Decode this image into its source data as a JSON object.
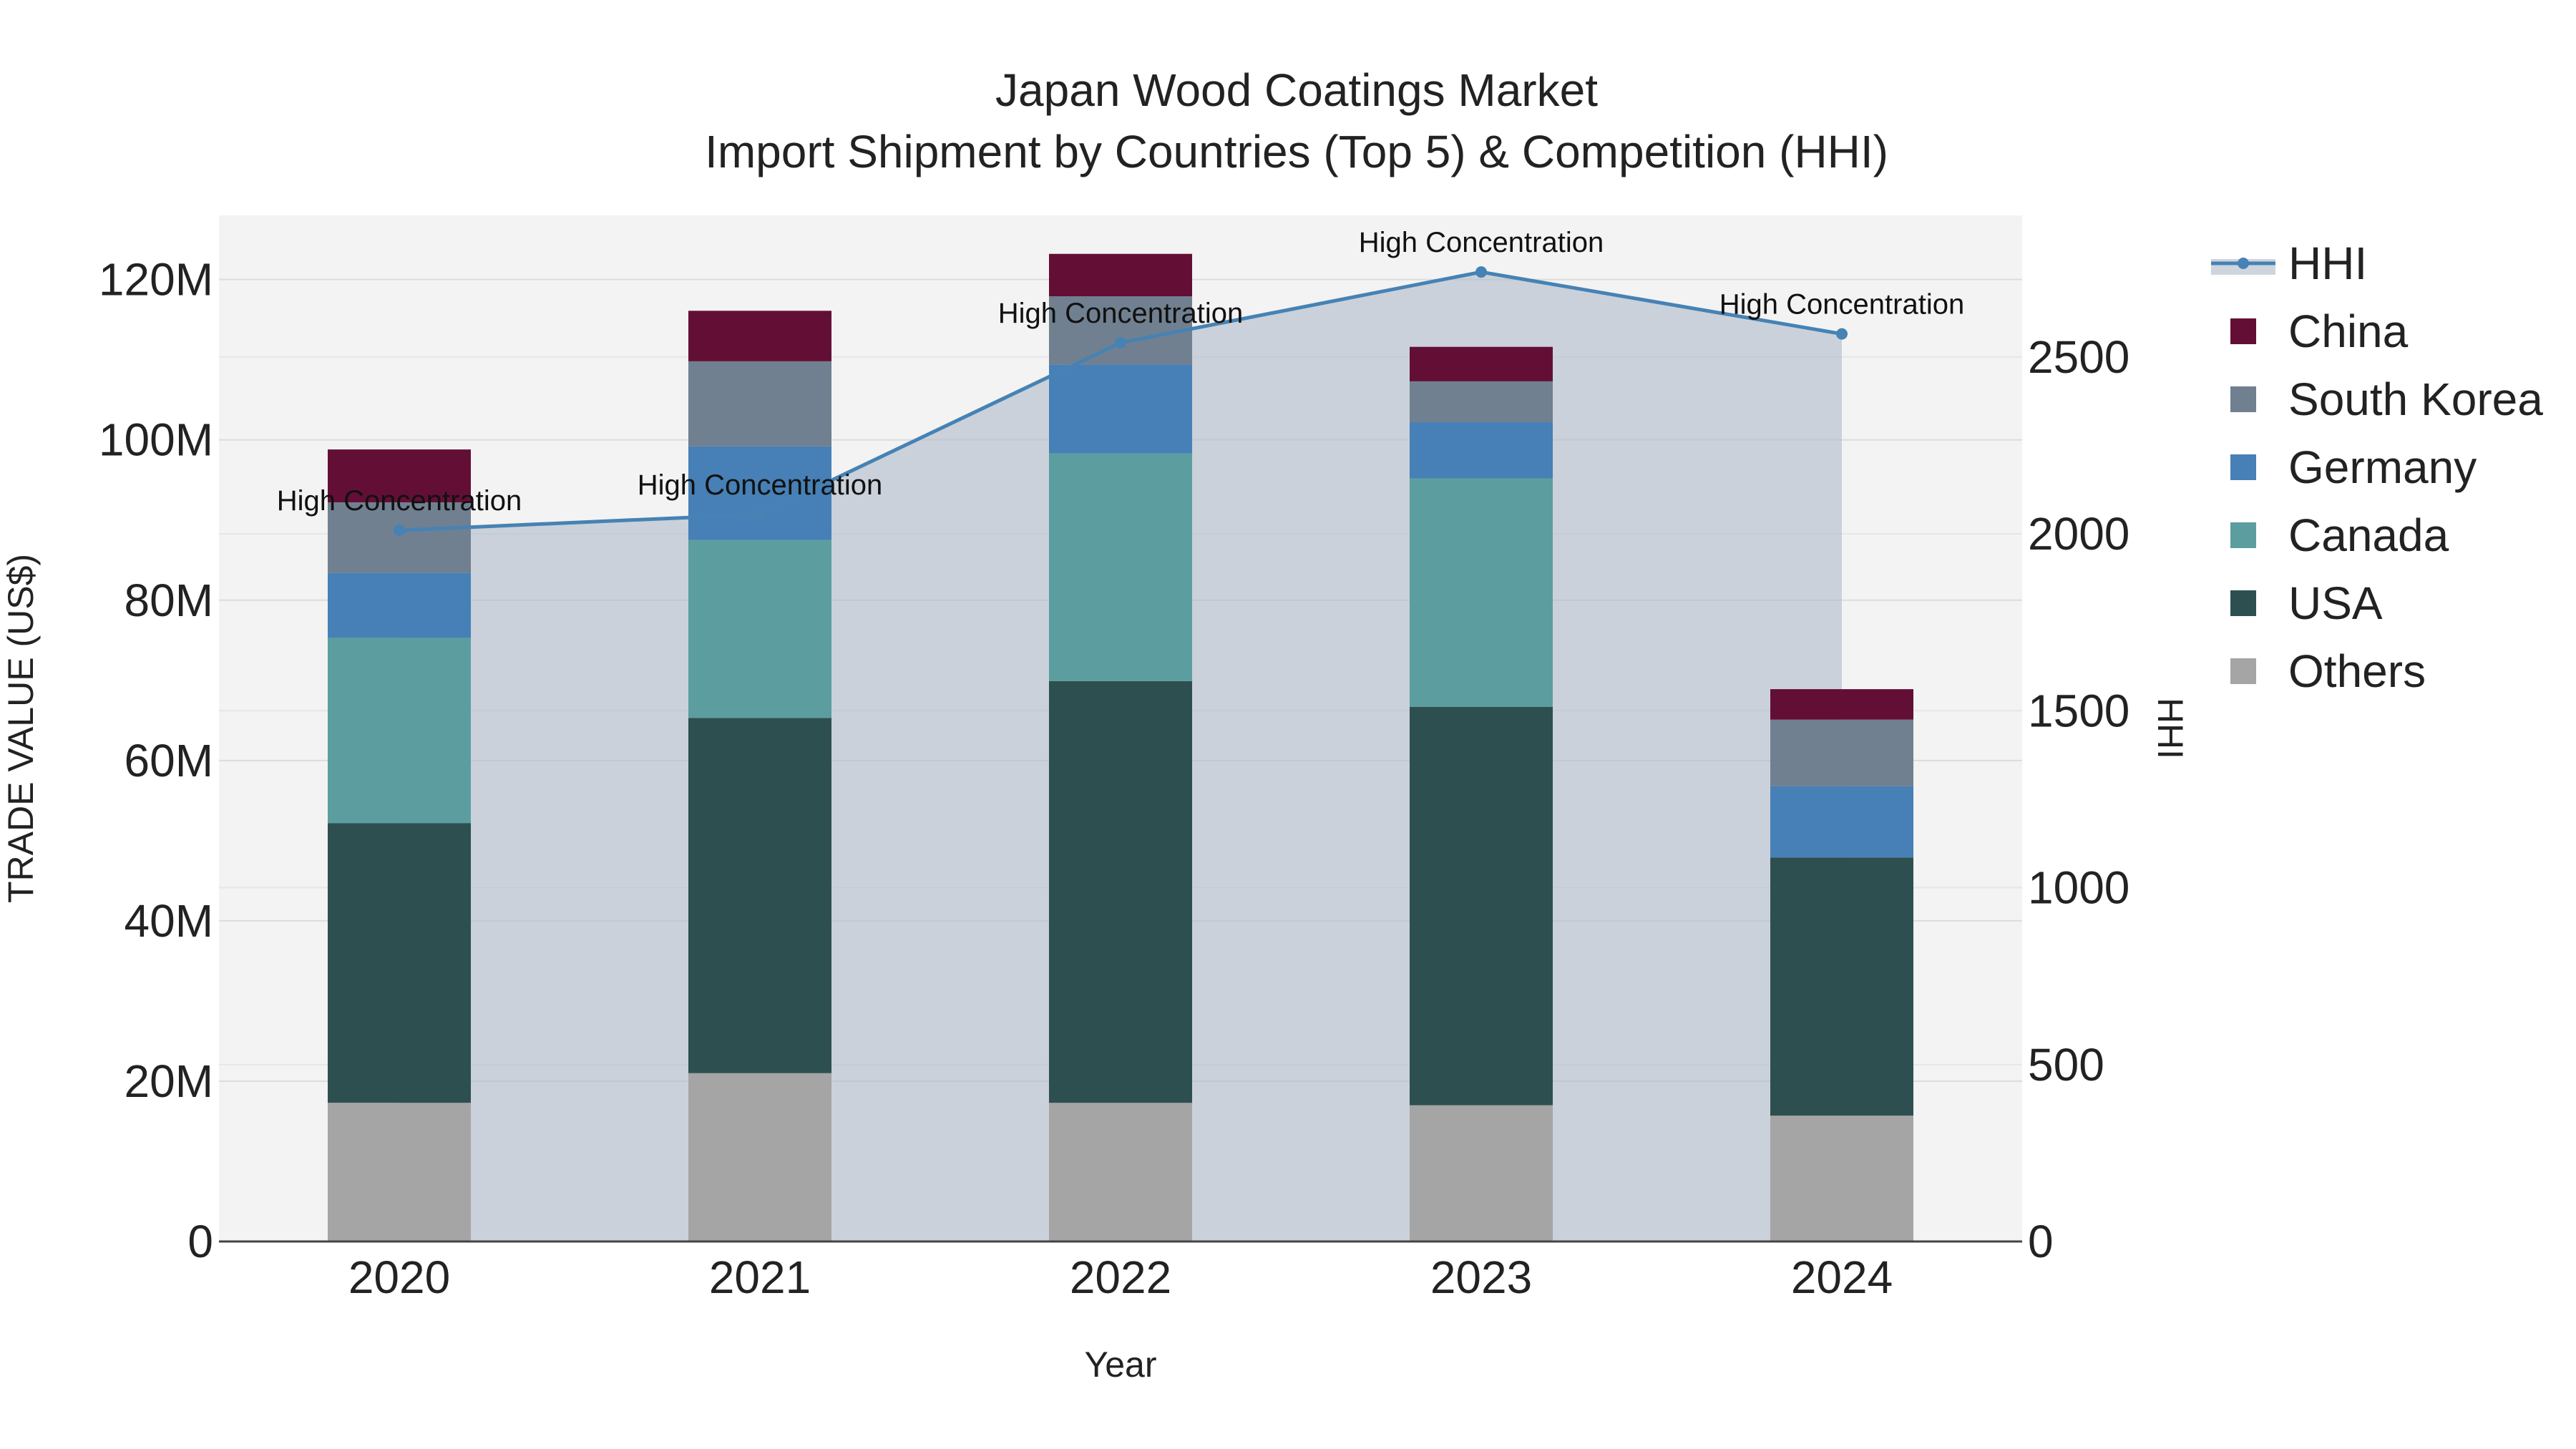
{
  "chart_data": {
    "type": "bar",
    "title_line1": "Japan Wood Coatings Market",
    "title_line2": "Import Shipment by Countries (Top 5) & Competition (HHI)",
    "xlabel": "Year",
    "ylabel": "TRADE VALUE (US$)",
    "y2label": "HHI",
    "categories": [
      "2020",
      "2021",
      "2022",
      "2023",
      "2024"
    ],
    "ylim": [
      0,
      128000000
    ],
    "y2lim": [
      0,
      2900
    ],
    "yticks": [
      {
        "value": 0,
        "label": "0"
      },
      {
        "value": 20000000,
        "label": "20M"
      },
      {
        "value": 40000000,
        "label": "40M"
      },
      {
        "value": 60000000,
        "label": "60M"
      },
      {
        "value": 80000000,
        "label": "80M"
      },
      {
        "value": 100000000,
        "label": "100M"
      },
      {
        "value": 120000000,
        "label": "120M"
      }
    ],
    "y2ticks": [
      {
        "value": 0,
        "label": "0"
      },
      {
        "value": 500,
        "label": "500"
      },
      {
        "value": 1000,
        "label": "1000"
      },
      {
        "value": 1500,
        "label": "1500"
      },
      {
        "value": 2000,
        "label": "2000"
      },
      {
        "value": 2500,
        "label": "2500"
      }
    ],
    "series": [
      {
        "name": "Others",
        "color": "#a5a5a5",
        "values": [
          17300000,
          21000000,
          17300000,
          17000000,
          15700000
        ]
      },
      {
        "name": "USA",
        "color": "#2e4f4f",
        "values": [
          34900000,
          44300000,
          52600000,
          49700000,
          32200000
        ]
      },
      {
        "name": "Canada",
        "color": "#5c9e9f",
        "values": [
          23100000,
          22200000,
          28400000,
          28500000,
          0
        ]
      },
      {
        "name": "Germany",
        "color": "#4680b6",
        "values": [
          8100000,
          11700000,
          11100000,
          7000000,
          8900000
        ]
      },
      {
        "name": "South Korea",
        "color": "#708090",
        "values": [
          8800000,
          10600000,
          8500000,
          5100000,
          8300000
        ]
      },
      {
        "name": "China",
        "color": "#630f35",
        "values": [
          6600000,
          6300000,
          5300000,
          4300000,
          3800000
        ]
      }
    ],
    "hhi": {
      "name": "HHI",
      "color": "#4682b4",
      "values": [
        2010,
        2055,
        2540,
        2740,
        2565
      ],
      "annotations": [
        "High Concentration",
        "High Concentration",
        "High Concentration",
        "High Concentration",
        "High Concentration"
      ]
    },
    "legend_order": [
      "HHI",
      "China",
      "South Korea",
      "Germany",
      "Canada",
      "USA",
      "Others"
    ]
  }
}
